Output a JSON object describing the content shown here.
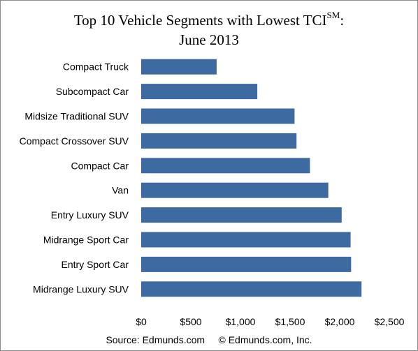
{
  "chart_data": {
    "type": "bar",
    "orientation": "horizontal",
    "title_main": "Top 10 Vehicle Segments with Lowest TCI",
    "title_sup": "SM",
    "title_colon": ":",
    "title_line2": "June 2013",
    "categories": [
      "Compact Truck",
      "Subcompact Car",
      "Midsize Traditional SUV",
      "Compact Crossover SUV",
      "Compact Car",
      "Van",
      "Entry Luxury SUV",
      "Midrange Sport Car",
      "Entry Sport Car",
      "Midrange Luxury SUV"
    ],
    "values": [
      760,
      1170,
      1545,
      1565,
      1700,
      1885,
      2020,
      2110,
      2115,
      2220
    ],
    "xlim": [
      0,
      2500
    ],
    "xticks": [
      0,
      500,
      1000,
      1500,
      2000,
      2500
    ],
    "xtick_labels": [
      "$0",
      "$500",
      "$1,000",
      "$1,500",
      "$2,000",
      "$2,500"
    ],
    "bar_color": "#3d6aa1",
    "grid": false,
    "legend": "none"
  },
  "footer": {
    "source": "Source: Edmunds.com",
    "copyright": "© Edmunds.com, Inc."
  }
}
